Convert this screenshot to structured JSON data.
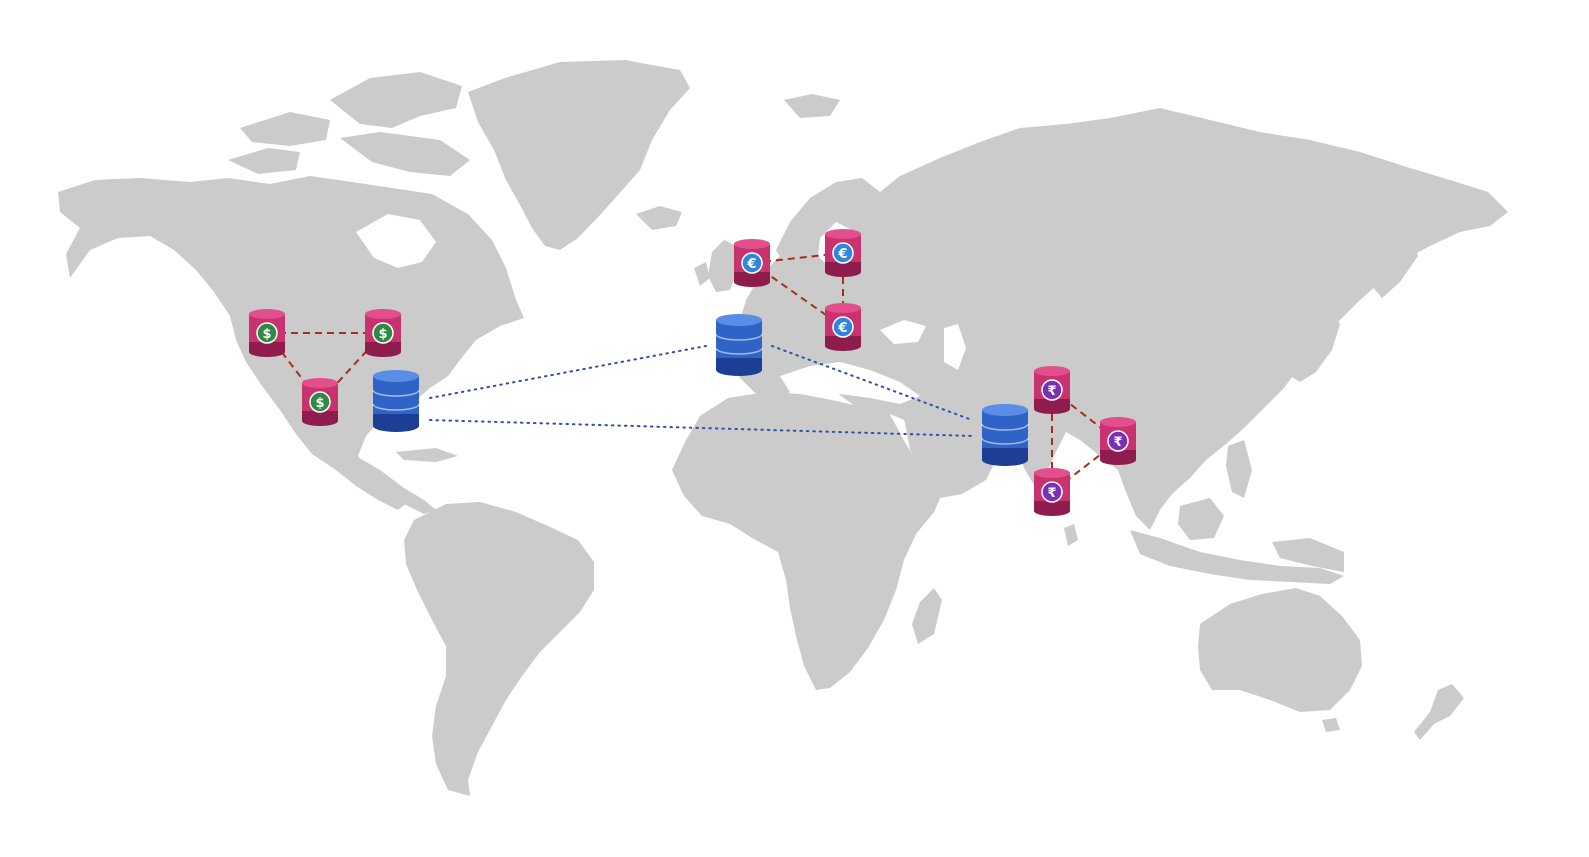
{
  "colors": {
    "land": "#cbcbcb",
    "ocean": "#ffffff",
    "regional_link": "#a0311a",
    "hub_link": "#2f4fa8",
    "regional_db_top": "#e24f8c",
    "regional_db_body": "#c8336f",
    "regional_db_dark": "#8e1d4d",
    "hub_db_top": "#5a8ee6",
    "hub_db_body": "#2f63c8",
    "hub_db_dark": "#1c3f95"
  },
  "currencies": {
    "usd": {
      "symbol": "$",
      "badge_color": "#2e8b45",
      "icon": "dollar-icon"
    },
    "eur": {
      "symbol": "€",
      "badge_color": "#2f86e0",
      "icon": "euro-icon"
    },
    "inr": {
      "symbol": "₹",
      "badge_color": "#7a2fb4",
      "icon": "rupee-icon"
    }
  },
  "regions": [
    {
      "id": "north-america",
      "currency": "usd",
      "nodes": [
        {
          "id": "na-1"
        },
        {
          "id": "na-2"
        },
        {
          "id": "na-3"
        }
      ],
      "links": [
        [
          "na-1",
          "na-2"
        ],
        [
          "na-1",
          "na-3"
        ],
        [
          "na-2",
          "na-3"
        ]
      ]
    },
    {
      "id": "europe",
      "currency": "eur",
      "nodes": [
        {
          "id": "eu-1"
        },
        {
          "id": "eu-2"
        },
        {
          "id": "eu-3"
        }
      ],
      "links": [
        [
          "eu-1",
          "eu-2"
        ],
        [
          "eu-2",
          "eu-3"
        ],
        [
          "eu-1",
          "eu-3"
        ]
      ]
    },
    {
      "id": "india",
      "currency": "inr",
      "nodes": [
        {
          "id": "in-1"
        },
        {
          "id": "in-2"
        },
        {
          "id": "in-3"
        }
      ],
      "links": [
        [
          "in-1",
          "in-2"
        ],
        [
          "in-1",
          "in-3"
        ],
        [
          "in-2",
          "in-3"
        ]
      ]
    }
  ],
  "hubs": [
    {
      "id": "hub-na"
    },
    {
      "id": "hub-eu"
    },
    {
      "id": "hub-asia"
    }
  ],
  "hub_links": [
    [
      "hub-na",
      "hub-eu"
    ],
    [
      "hub-na",
      "hub-asia"
    ],
    [
      "hub-eu",
      "hub-asia"
    ]
  ]
}
